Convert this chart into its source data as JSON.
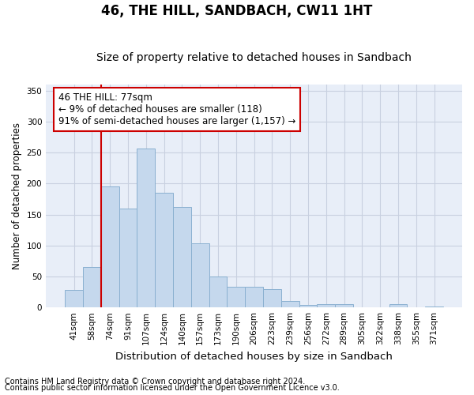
{
  "title1": "46, THE HILL, SANDBACH, CW11 1HT",
  "title2": "Size of property relative to detached houses in Sandbach",
  "xlabel": "Distribution of detached houses by size in Sandbach",
  "ylabel": "Number of detached properties",
  "categories": [
    "41sqm",
    "58sqm",
    "74sqm",
    "91sqm",
    "107sqm",
    "124sqm",
    "140sqm",
    "157sqm",
    "173sqm",
    "190sqm",
    "206sqm",
    "223sqm",
    "239sqm",
    "256sqm",
    "272sqm",
    "289sqm",
    "305sqm",
    "322sqm",
    "338sqm",
    "355sqm",
    "371sqm"
  ],
  "values": [
    28,
    65,
    195,
    160,
    257,
    185,
    162,
    103,
    50,
    33,
    33,
    29,
    10,
    4,
    5,
    5,
    0,
    0,
    5,
    0,
    2
  ],
  "bar_color": "#c5d8ed",
  "bar_edge_color": "#8ab0d0",
  "grid_color": "#c8d0e0",
  "background_color": "#e8eef8",
  "annotation_line1": "46 THE HILL: 77sqm",
  "annotation_line2": "← 9% of detached houses are smaller (118)",
  "annotation_line3": "91% of semi-detached houses are larger (1,157) →",
  "vline_x": 1.5,
  "vline_color": "#cc0000",
  "ylim": [
    0,
    360
  ],
  "yticks": [
    0,
    50,
    100,
    150,
    200,
    250,
    300,
    350
  ],
  "footnote1": "Contains HM Land Registry data © Crown copyright and database right 2024.",
  "footnote2": "Contains public sector information licensed under the Open Government Licence v3.0.",
  "title1_fontsize": 12,
  "title2_fontsize": 10,
  "xlabel_fontsize": 9.5,
  "ylabel_fontsize": 8.5,
  "tick_fontsize": 7.5,
  "annotation_fontsize": 8.5,
  "footnote_fontsize": 7
}
